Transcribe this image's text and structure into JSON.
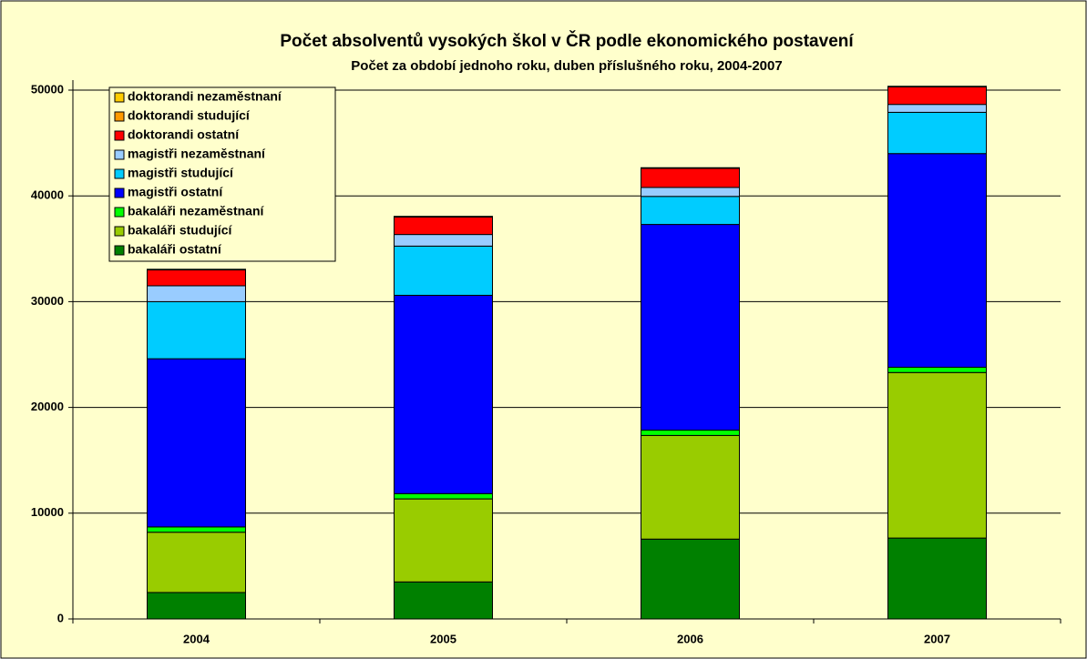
{
  "chart_data": {
    "type": "stacked_bar",
    "title": "Počet absolventů vysokých škol v ČR podle ekonomického postavení",
    "subtitle": "Počet za období jednoho roku, duben příslušného roku, 2004-2007",
    "categories": [
      "2004",
      "2005",
      "2006",
      "2007"
    ],
    "ylim": [
      0,
      50000
    ],
    "yticks": [
      0,
      10000,
      20000,
      30000,
      40000,
      50000
    ],
    "grid": true,
    "legend": "top-left",
    "series": [
      {
        "name": "bakaláři ostatní",
        "color": "#008000",
        "values": [
          2500,
          3500,
          7550,
          7650
        ]
      },
      {
        "name": "bakaláři studující",
        "color": "#99cc00",
        "values": [
          5700,
          7850,
          9800,
          15650
        ]
      },
      {
        "name": "bakaláři nezaměstnaní",
        "color": "#00ff00",
        "values": [
          500,
          500,
          500,
          500
        ]
      },
      {
        "name": "magistři ostatní",
        "color": "#0000ff",
        "values": [
          15900,
          18750,
          19450,
          20200
        ]
      },
      {
        "name": "magistři studující",
        "color": "#00ccff",
        "values": [
          5400,
          4650,
          2650,
          3900
        ]
      },
      {
        "name": "magistři nezaměstnaní",
        "color": "#99ccff",
        "values": [
          1500,
          1100,
          850,
          750
        ]
      },
      {
        "name": "doktorandi ostatní",
        "color": "#ff0000",
        "values": [
          1500,
          1650,
          1800,
          1650
        ]
      },
      {
        "name": "doktorandi studující",
        "color": "#ff9900",
        "values": [
          50,
          50,
          50,
          50
        ]
      },
      {
        "name": "doktorandi nezaměstnaní",
        "color": "#ffcc00",
        "values": [
          10,
          10,
          10,
          10
        ]
      }
    ]
  }
}
